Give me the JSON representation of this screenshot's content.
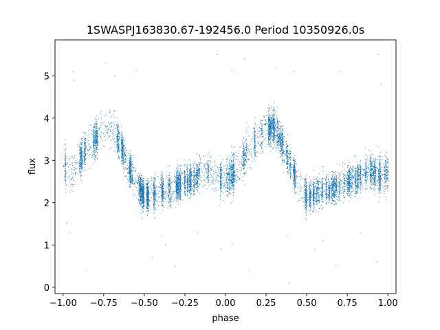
{
  "chart_data": {
    "type": "scatter",
    "title": "1SWASPJ163830.67-192456.0 Period 10350926.0s",
    "xlabel": "phase",
    "ylabel": "flux",
    "xlim": [
      -1.05,
      1.05
    ],
    "ylim": [
      -0.15,
      5.85
    ],
    "x_ticks": [
      -1.0,
      -0.75,
      -0.5,
      -0.25,
      0.0,
      0.25,
      0.5,
      0.75,
      1.0
    ],
    "x_tick_labels": [
      "−1.00",
      "−0.75",
      "−0.50",
      "−0.25",
      "0.00",
      "0.25",
      "0.50",
      "0.75",
      "1.00"
    ],
    "y_ticks": [
      0,
      1,
      2,
      3,
      4,
      5
    ],
    "y_tick_labels": [
      "0",
      "1",
      "2",
      "3",
      "4",
      "5"
    ],
    "grid": false,
    "legend": "none",
    "marker_color": "#1f77b4",
    "series": [
      {
        "profile": [
          {
            "phase": -1.0,
            "flux": 2.9,
            "spread": 0.45
          },
          {
            "phase": -0.95,
            "flux": 2.7,
            "spread": 0.45
          },
          {
            "phase": -0.9,
            "flux": 3.0,
            "spread": 0.4
          },
          {
            "phase": -0.85,
            "flux": 3.3,
            "spread": 0.4
          },
          {
            "phase": -0.8,
            "flux": 3.5,
            "spread": 0.4
          },
          {
            "phase": -0.75,
            "flux": 3.75,
            "spread": 0.4
          },
          {
            "phase": -0.7,
            "flux": 3.8,
            "spread": 0.4
          },
          {
            "phase": -0.65,
            "flux": 3.4,
            "spread": 0.35
          },
          {
            "phase": -0.6,
            "flux": 2.9,
            "spread": 0.35
          },
          {
            "phase": -0.55,
            "flux": 2.45,
            "spread": 0.35
          },
          {
            "phase": -0.5,
            "flux": 2.15,
            "spread": 0.35
          },
          {
            "phase": -0.45,
            "flux": 2.2,
            "spread": 0.35
          },
          {
            "phase": -0.4,
            "flux": 2.3,
            "spread": 0.35
          },
          {
            "phase": -0.35,
            "flux": 2.3,
            "spread": 0.35
          },
          {
            "phase": -0.3,
            "flux": 2.4,
            "spread": 0.35
          },
          {
            "phase": -0.25,
            "flux": 2.5,
            "spread": 0.35
          },
          {
            "phase": -0.2,
            "flux": 2.55,
            "spread": 0.35
          },
          {
            "phase": -0.15,
            "flux": 2.7,
            "spread": 0.35
          },
          {
            "phase": -0.1,
            "flux": 2.75,
            "spread": 0.35
          },
          {
            "phase": -0.05,
            "flux": 2.6,
            "spread": 0.4
          },
          {
            "phase": 0.0,
            "flux": 2.55,
            "spread": 0.4
          },
          {
            "phase": 0.05,
            "flux": 2.7,
            "spread": 0.45
          },
          {
            "phase": 0.1,
            "flux": 3.0,
            "spread": 0.45
          },
          {
            "phase": 0.15,
            "flux": 3.3,
            "spread": 0.4
          },
          {
            "phase": 0.2,
            "flux": 3.5,
            "spread": 0.4
          },
          {
            "phase": 0.25,
            "flux": 3.75,
            "spread": 0.4
          },
          {
            "phase": 0.3,
            "flux": 3.8,
            "spread": 0.4
          },
          {
            "phase": 0.35,
            "flux": 3.4,
            "spread": 0.35
          },
          {
            "phase": 0.4,
            "flux": 2.9,
            "spread": 0.35
          },
          {
            "phase": 0.45,
            "flux": 2.45,
            "spread": 0.35
          },
          {
            "phase": 0.5,
            "flux": 2.15,
            "spread": 0.35
          },
          {
            "phase": 0.55,
            "flux": 2.2,
            "spread": 0.35
          },
          {
            "phase": 0.6,
            "flux": 2.3,
            "spread": 0.35
          },
          {
            "phase": 0.65,
            "flux": 2.3,
            "spread": 0.35
          },
          {
            "phase": 0.7,
            "flux": 2.4,
            "spread": 0.35
          },
          {
            "phase": 0.75,
            "flux": 2.5,
            "spread": 0.35
          },
          {
            "phase": 0.8,
            "flux": 2.55,
            "spread": 0.35
          },
          {
            "phase": 0.85,
            "flux": 2.7,
            "spread": 0.35
          },
          {
            "phase": 0.9,
            "flux": 2.75,
            "spread": 0.35
          },
          {
            "phase": 0.95,
            "flux": 2.6,
            "spread": 0.4
          },
          {
            "phase": 1.0,
            "flux": 2.7,
            "spread": 0.4
          }
        ],
        "outliers": [
          {
            "phase": -0.94,
            "flux": 5.1
          },
          {
            "phase": -0.93,
            "flux": 4.9
          },
          {
            "phase": -0.96,
            "flux": 1.3
          },
          {
            "phase": -0.98,
            "flux": 1.5
          },
          {
            "phase": -0.86,
            "flux": 0.4
          },
          {
            "phase": -0.74,
            "flux": 5.3
          },
          {
            "phase": -0.68,
            "flux": 5.0
          },
          {
            "phase": -0.55,
            "flux": 5.1
          },
          {
            "phase": -0.45,
            "flux": 0.7
          },
          {
            "phase": -0.4,
            "flux": 1.2
          },
          {
            "phase": -0.37,
            "flux": 1.0
          },
          {
            "phase": -0.31,
            "flux": 0.5
          },
          {
            "phase": -0.17,
            "flux": 1.3
          },
          {
            "phase": -0.05,
            "flux": 5.5
          },
          {
            "phase": -0.03,
            "flux": 0.9
          },
          {
            "phase": 0.04,
            "flux": 5.1
          },
          {
            "phase": 0.04,
            "flux": 1.0
          },
          {
            "phase": 0.12,
            "flux": 5.4
          },
          {
            "phase": 0.14,
            "flux": 0.4
          },
          {
            "phase": 0.31,
            "flux": 5.2
          },
          {
            "phase": 0.38,
            "flux": 1.2
          },
          {
            "phase": 0.39,
            "flux": 0.1
          },
          {
            "phase": 0.42,
            "flux": 5.1
          },
          {
            "phase": 0.55,
            "flux": 0.9
          },
          {
            "phase": 0.6,
            "flux": 1.1
          },
          {
            "phase": 0.68,
            "flux": 0.5
          },
          {
            "phase": 0.71,
            "flux": 5.1
          },
          {
            "phase": 0.83,
            "flux": 1.3
          },
          {
            "phase": 0.94,
            "flux": 5.5
          },
          {
            "phase": 0.93,
            "flux": 0.6
          },
          {
            "phase": 0.96,
            "flux": 4.8
          }
        ]
      }
    ]
  }
}
